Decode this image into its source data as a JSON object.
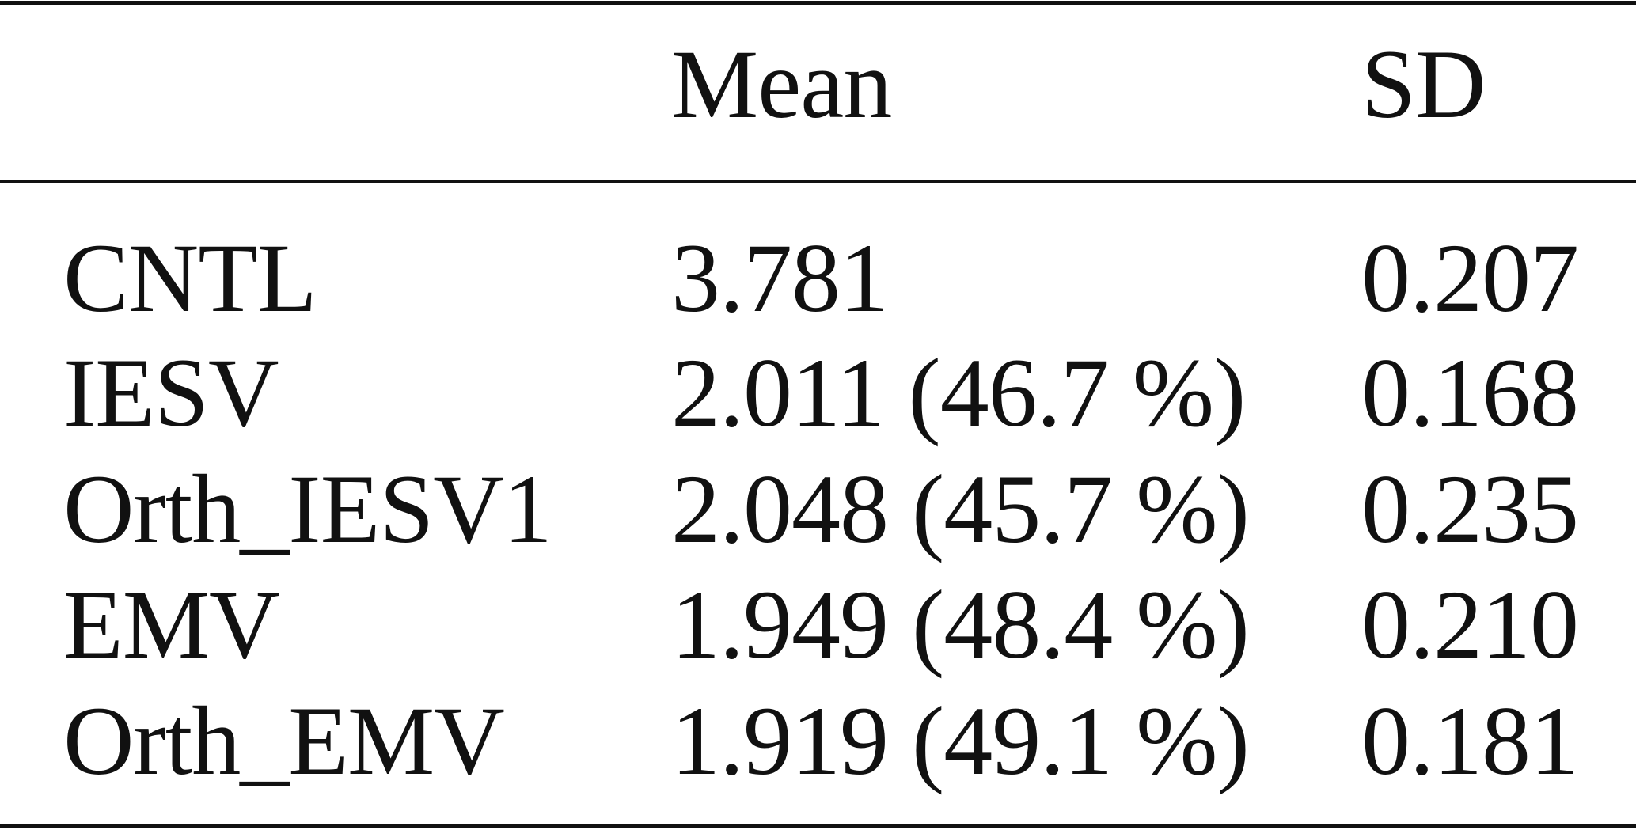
{
  "table": {
    "headers": [
      "",
      "Mean",
      "SD"
    ],
    "rows": [
      {
        "label": "CNTL",
        "mean": "3.781",
        "sd": "0.207"
      },
      {
        "label": "IESV",
        "mean": "2.011 (46.7 %)",
        "sd": "0.168"
      },
      {
        "label": "Orth_IESV1",
        "mean": "2.048 (45.7 %)",
        "sd": "0.235"
      },
      {
        "label": "EMV",
        "mean": "1.949 (48.4 %)",
        "sd": "0.210"
      },
      {
        "label": "Orth_EMV",
        "mean": "1.919 (49.1 %)",
        "sd": "0.181"
      }
    ]
  }
}
